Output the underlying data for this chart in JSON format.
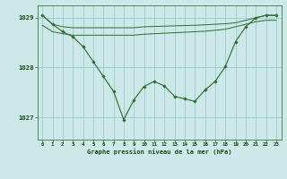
{
  "title": "Graphe pression niveau de la mer (hPa)",
  "bg_color": "#cce8e8",
  "grid_color": "#99cccc",
  "line_color": "#2d6b2d",
  "marker_color": "#2d6b2d",
  "xlim": [
    -0.5,
    23.5
  ],
  "ylim": [
    1026.55,
    1029.25
  ],
  "yticks": [
    1027,
    1028,
    1029
  ],
  "xticks": [
    0,
    1,
    2,
    3,
    4,
    5,
    6,
    7,
    8,
    9,
    10,
    11,
    12,
    13,
    14,
    15,
    16,
    17,
    18,
    19,
    20,
    21,
    22,
    23
  ],
  "series1_x": [
    0,
    1,
    2,
    3,
    9,
    10,
    15,
    18,
    19,
    20,
    21,
    22,
    23
  ],
  "series1_y": [
    1029.05,
    1028.87,
    1028.82,
    1028.8,
    1028.8,
    1028.82,
    1028.85,
    1028.88,
    1028.9,
    1028.95,
    1029.0,
    1029.05,
    1029.05
  ],
  "series2_x": [
    0,
    1,
    2,
    3,
    9,
    10,
    15,
    16,
    17,
    18,
    19,
    20,
    21,
    22,
    23
  ],
  "series2_y": [
    1028.85,
    1028.72,
    1028.68,
    1028.65,
    1028.65,
    1028.67,
    1028.72,
    1028.73,
    1028.75,
    1028.77,
    1028.82,
    1028.87,
    1028.92,
    1028.95,
    1028.95
  ],
  "series3": [
    1029.05,
    1028.87,
    1028.72,
    1028.62,
    1028.42,
    1028.12,
    1027.82,
    1027.52,
    1026.95,
    1027.35,
    1027.62,
    1027.72,
    1027.63,
    1027.42,
    1027.37,
    1027.32,
    1027.55,
    1027.72,
    1028.02,
    1028.52,
    1028.82,
    1029.0,
    1029.05,
    1029.05
  ]
}
